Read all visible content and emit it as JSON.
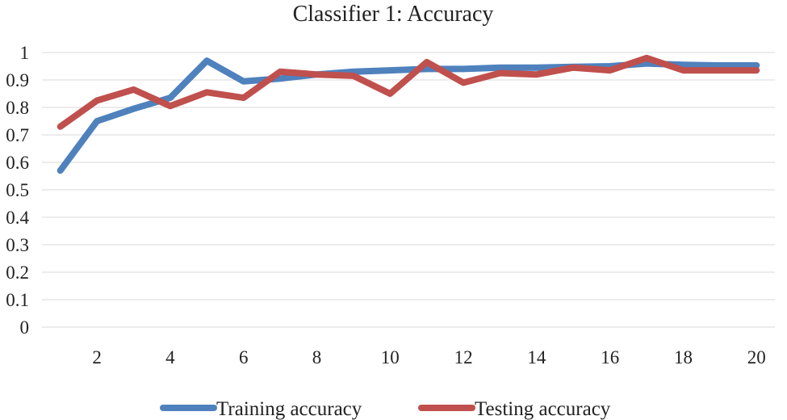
{
  "chart_data": {
    "type": "line",
    "title": "Classifier 1: Accuracy",
    "xlabel": "",
    "ylabel": "",
    "x": [
      1,
      2,
      3,
      4,
      5,
      6,
      7,
      8,
      9,
      10,
      11,
      12,
      13,
      14,
      15,
      16,
      17,
      18,
      19,
      20
    ],
    "xticks": [
      2,
      4,
      6,
      8,
      10,
      12,
      14,
      16,
      18,
      20
    ],
    "yticks": [
      0,
      0.1,
      0.2,
      0.3,
      0.4,
      0.5,
      0.6,
      0.7,
      0.8,
      0.9,
      1
    ],
    "ylim": [
      0,
      1
    ],
    "xlim": [
      0.5,
      20.5
    ],
    "grid": "horizontal",
    "legend": "bottom",
    "series": [
      {
        "name": "Training accuracy",
        "color": "#4f81bd",
        "values": [
          0.57,
          0.75,
          0.795,
          0.835,
          0.97,
          0.895,
          0.905,
          0.92,
          0.93,
          0.935,
          0.94,
          0.94,
          0.945,
          0.945,
          0.948,
          0.95,
          0.96,
          0.955,
          0.953,
          0.953
        ]
      },
      {
        "name": "Testing accuracy",
        "color": "#c0504d",
        "values": [
          0.73,
          0.825,
          0.865,
          0.805,
          0.855,
          0.835,
          0.93,
          0.92,
          0.915,
          0.85,
          0.965,
          0.89,
          0.925,
          0.92,
          0.945,
          0.935,
          0.98,
          0.935,
          0.935,
          0.935
        ]
      }
    ]
  }
}
